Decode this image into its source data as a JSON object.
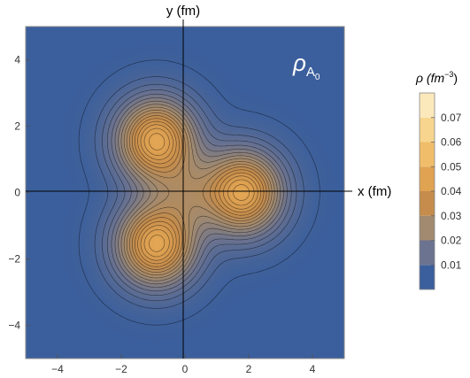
{
  "chart_data": {
    "type": "heatmap",
    "subtype": "contour density plot",
    "title": "",
    "plot_label": {
      "main": "ρ",
      "sub": "A",
      "subsub": "0"
    },
    "xlabel": "x (fm)",
    "ylabel": "y (fm)",
    "xlim": [
      -5,
      5
    ],
    "ylim": [
      -5,
      5
    ],
    "x_ticks": [
      -4,
      -2,
      0,
      2,
      4
    ],
    "y_ticks": [
      -4,
      -2,
      0,
      2,
      4
    ],
    "tick_labels": {
      "x": [
        "−4",
        "−2",
        "0",
        "2",
        "4"
      ],
      "y": [
        "−4",
        "−2",
        "0",
        "2",
        "4"
      ]
    },
    "grid": false,
    "axes_through_origin": true,
    "density_maxima": [
      {
        "x": 1.8,
        "y": 0.0
      },
      {
        "x": -0.9,
        "y": 1.56
      },
      {
        "x": -0.9,
        "y": -1.56
      },
      {
        "x": 0.0,
        "y": 0.0
      }
    ],
    "value_range": [
      0,
      0.08
    ],
    "colorbar": {
      "label": {
        "main": "ρ (fm",
        "sup": "−3",
        "tail": ")"
      },
      "ticks": [
        0.01,
        0.02,
        0.03,
        0.04,
        0.05,
        0.06,
        0.07
      ],
      "tick_labels": [
        "0.01",
        "0.02",
        "0.03",
        "0.04",
        "0.05",
        "0.06",
        "0.07"
      ],
      "levels": [
        0,
        0.01,
        0.02,
        0.03,
        0.04,
        0.05,
        0.06,
        0.07,
        0.08
      ],
      "colors": [
        "#3b5f9c",
        "#6b7390",
        "#a18a70",
        "#c58c4c",
        "#e0a352",
        "#f0bd6a",
        "#f7d58e",
        "#fbe9bc"
      ]
    },
    "colors": {
      "background": "#3b5f9c",
      "contour_line": "#000000"
    }
  }
}
